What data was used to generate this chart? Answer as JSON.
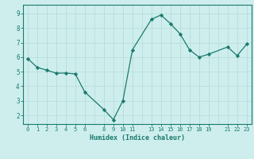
{
  "x": [
    0,
    1,
    2,
    3,
    4,
    5,
    6,
    8,
    9,
    10,
    11,
    13,
    14,
    15,
    16,
    17,
    18,
    19,
    21,
    22,
    23
  ],
  "y": [
    5.9,
    5.3,
    5.1,
    4.9,
    4.9,
    4.85,
    3.6,
    2.4,
    1.7,
    3.0,
    6.5,
    8.6,
    8.9,
    8.3,
    7.6,
    6.5,
    6.0,
    6.2,
    6.7,
    6.1,
    6.9
  ],
  "xticks": [
    0,
    1,
    2,
    3,
    4,
    5,
    6,
    8,
    9,
    10,
    11,
    13,
    14,
    15,
    16,
    17,
    18,
    19,
    21,
    22,
    23
  ],
  "yticks": [
    2,
    3,
    4,
    5,
    6,
    7,
    8,
    9
  ],
  "xlabel": "Humidex (Indice chaleur)",
  "ylim": [
    1.4,
    9.6
  ],
  "xlim": [
    -0.5,
    23.5
  ],
  "line_color": "#1a7a6e",
  "marker_color": "#1a7a6e",
  "bg_color": "#ceeeed",
  "grid_color": "#b8deda",
  "tick_color": "#1a7a6e"
}
